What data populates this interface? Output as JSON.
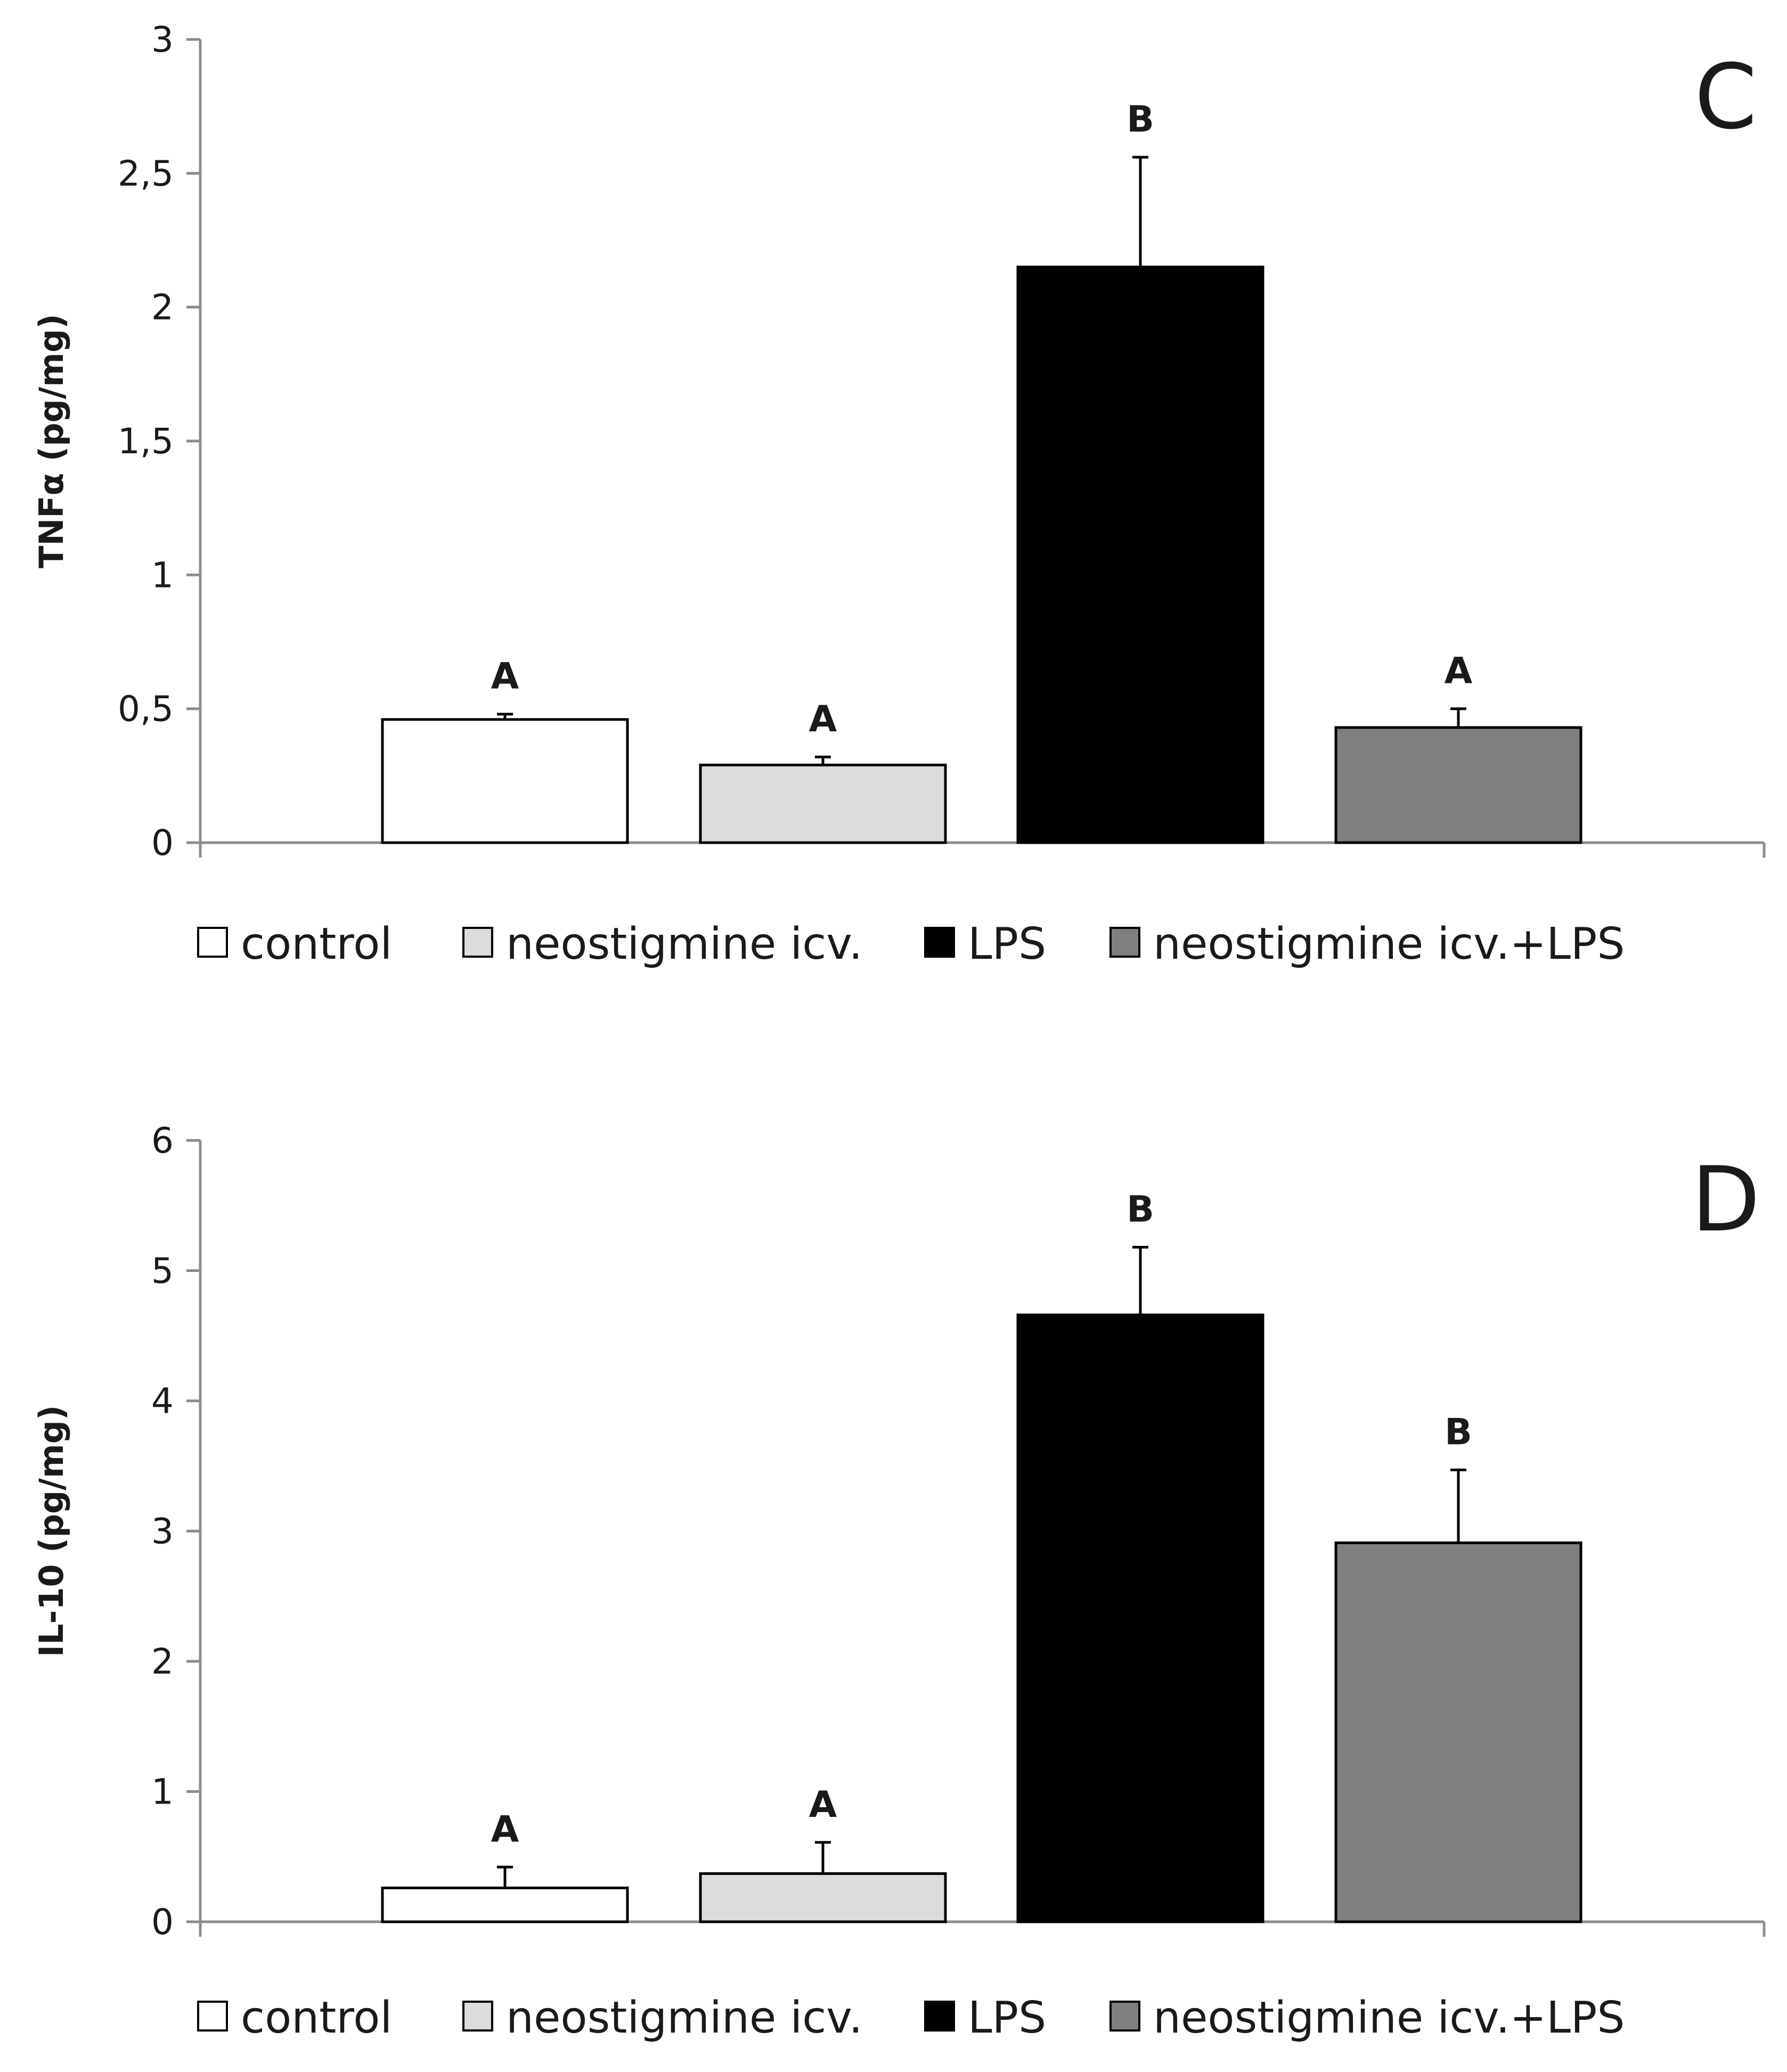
{
  "legend": [
    {
      "label": "control",
      "fill": "#ffffff"
    },
    {
      "label": "neostigmine icv.",
      "fill": "#dcdcdc"
    },
    {
      "label": "LPS",
      "fill": "#000000"
    },
    {
      "label": "neostigmine icv.+LPS",
      "fill": "#7f7f7f"
    }
  ],
  "chart_data": [
    {
      "type": "bar",
      "panel": "C",
      "ylabel": "TNFα (pg/mg)",
      "ylim": [
        0,
        3
      ],
      "yticks": [
        0,
        0.5,
        1,
        1.5,
        2,
        2.5,
        3
      ],
      "ytick_labels": [
        "0",
        "0,5",
        "1",
        "1,5",
        "2",
        "2,5",
        "3"
      ],
      "categories": [
        "control",
        "neostigmine icv.",
        "LPS",
        "neostigmine icv.+LPS"
      ],
      "values": [
        0.46,
        0.29,
        2.15,
        0.43
      ],
      "errors": [
        0.02,
        0.03,
        0.41,
        0.07
      ],
      "significance": [
        "A",
        "A",
        "B",
        "A"
      ]
    },
    {
      "type": "bar",
      "panel": "D",
      "ylabel": "IL-10 (pg/mg)",
      "ylim": [
        0,
        6
      ],
      "yticks": [
        0,
        1,
        2,
        3,
        4,
        5,
        6
      ],
      "ytick_labels": [
        "0",
        "1",
        "2",
        "3",
        "4",
        "5",
        "6"
      ],
      "categories": [
        "control",
        "neostigmine icv.",
        "LPS",
        "neostigmine icv.+LPS"
      ],
      "values": [
        0.26,
        0.37,
        4.66,
        2.91
      ],
      "errors": [
        0.16,
        0.24,
        0.52,
        0.56
      ],
      "significance": [
        "A",
        "A",
        "B",
        "B"
      ]
    }
  ]
}
